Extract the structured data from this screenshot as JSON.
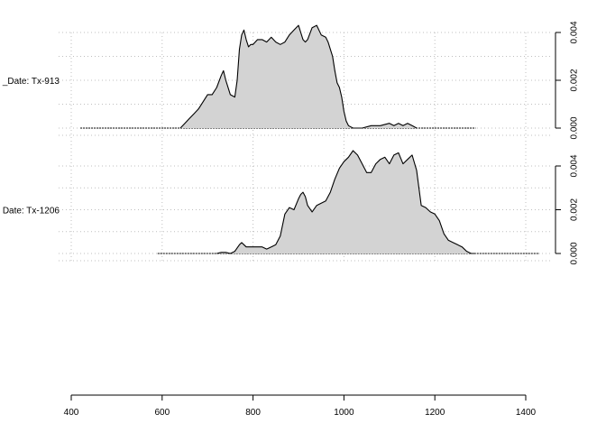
{
  "chart_data": {
    "type": "area",
    "title": "",
    "xlabel": "",
    "ylabel": "",
    "xlim": [
      400,
      1400
    ],
    "x_ticks": [
      "400",
      "600",
      "800",
      "1000",
      "1200",
      "1400"
    ],
    "grid": true,
    "fill_color": "#d3d3d3",
    "line_color": "#000000",
    "grid_color": "#bfbfbf",
    "panels": [
      {
        "label": "_Date: Tx-913",
        "ylim": [
          0,
          0.0045
        ],
        "y_ticks": [
          "0.000",
          "0.002",
          "0.004"
        ],
        "baseline_range": [
          420,
          1290
        ],
        "x": [
          640,
          650,
          660,
          670,
          680,
          690,
          700,
          710,
          720,
          730,
          735,
          740,
          750,
          760,
          765,
          770,
          775,
          780,
          785,
          790,
          795,
          800,
          810,
          820,
          830,
          840,
          850,
          860,
          870,
          880,
          890,
          900,
          905,
          910,
          915,
          920,
          930,
          940,
          950,
          960,
          965,
          970,
          975,
          980,
          985,
          990,
          995,
          1000,
          1005,
          1010,
          1020,
          1040,
          1060,
          1080,
          1100,
          1110,
          1120,
          1130,
          1140,
          1150,
          1160
        ],
        "y": [
          0.0,
          0.0002,
          0.0004,
          0.0006,
          0.0008,
          0.0011,
          0.0014,
          0.0014,
          0.0017,
          0.0022,
          0.0024,
          0.002,
          0.0014,
          0.0013,
          0.002,
          0.0033,
          0.0039,
          0.0041,
          0.0037,
          0.0034,
          0.0035,
          0.0035,
          0.0037,
          0.0037,
          0.0036,
          0.0038,
          0.0036,
          0.0035,
          0.0036,
          0.0039,
          0.0041,
          0.0043,
          0.004,
          0.0037,
          0.0036,
          0.0037,
          0.0042,
          0.0043,
          0.0039,
          0.0038,
          0.0036,
          0.0033,
          0.003,
          0.0024,
          0.0019,
          0.0017,
          0.0013,
          0.0007,
          0.0003,
          0.0001,
          0.0,
          0.0,
          0.0001,
          0.0001,
          0.0002,
          0.0001,
          0.0002,
          0.0001,
          0.0002,
          0.0001,
          0.0
        ]
      },
      {
        "label": "Date: Tx-1206",
        "ylim": [
          0,
          0.0045
        ],
        "y_ticks": [
          "0.000",
          "0.002",
          "0.004"
        ],
        "baseline_range": [
          590,
          1430
        ],
        "x": [
          720,
          730,
          740,
          750,
          760,
          770,
          775,
          780,
          785,
          790,
          800,
          810,
          820,
          830,
          840,
          850,
          860,
          870,
          880,
          890,
          900,
          905,
          910,
          915,
          920,
          930,
          940,
          950,
          960,
          970,
          980,
          990,
          1000,
          1010,
          1020,
          1030,
          1040,
          1050,
          1060,
          1070,
          1080,
          1090,
          1100,
          1110,
          1120,
          1130,
          1140,
          1150,
          1160,
          1170,
          1180,
          1190,
          1200,
          1210,
          1220,
          1230,
          1240,
          1250,
          1260,
          1270,
          1280,
          1290
        ],
        "y": [
          0.0,
          5e-05,
          5e-05,
          0.0,
          0.0001,
          0.0004,
          0.0005,
          0.0004,
          0.0003,
          0.0003,
          0.0003,
          0.0003,
          0.0003,
          0.0002,
          0.0003,
          0.0004,
          0.0008,
          0.0018,
          0.0021,
          0.002,
          0.0025,
          0.0027,
          0.0028,
          0.0026,
          0.0022,
          0.0019,
          0.0022,
          0.0023,
          0.0024,
          0.0028,
          0.0034,
          0.0039,
          0.0042,
          0.0044,
          0.0047,
          0.0045,
          0.0041,
          0.0037,
          0.0037,
          0.0041,
          0.0043,
          0.0044,
          0.0041,
          0.0045,
          0.0046,
          0.0041,
          0.0043,
          0.0045,
          0.0038,
          0.0022,
          0.0021,
          0.0019,
          0.0018,
          0.0015,
          0.0009,
          0.0006,
          0.0005,
          0.0004,
          0.0003,
          0.0001,
          0.0,
          0.0
        ]
      }
    ]
  }
}
